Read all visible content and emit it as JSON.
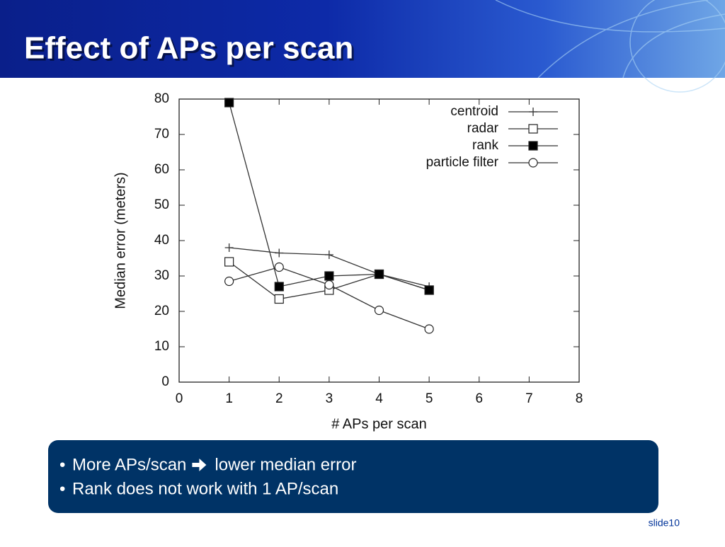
{
  "slide": {
    "title": "Effect of APs per scan",
    "bullets": [
      {
        "before": "More APs/scan",
        "after": "lower median error"
      },
      "Rank does not work with 1 AP/scan"
    ],
    "footer": "slide10"
  },
  "chart_data": {
    "type": "line",
    "xlabel": "# APs per scan",
    "ylabel": "Median error (meters)",
    "x": [
      1,
      2,
      3,
      4,
      5
    ],
    "series": [
      {
        "name": "centroid",
        "color": "#333333",
        "marker": "plus",
        "values": [
          38,
          36.5,
          36,
          30.5,
          27
        ]
      },
      {
        "name": "radar",
        "color": "#333333",
        "marker": "square",
        "values": [
          34,
          23.5,
          26,
          30.5,
          26
        ]
      },
      {
        "name": "rank",
        "color": "#333333",
        "marker": "filled-square",
        "values": [
          79,
          27,
          30,
          30.5,
          26
        ]
      },
      {
        "name": "particle filter",
        "color": "#333333",
        "marker": "circle",
        "values": [
          28.5,
          32.5,
          27.5,
          20.3,
          15
        ]
      }
    ],
    "xlim": [
      0,
      8
    ],
    "xticks": [
      0,
      1,
      2,
      3,
      4,
      5,
      6,
      7,
      8
    ],
    "ylim": [
      0,
      80
    ],
    "yticks": [
      0,
      10,
      20,
      30,
      40,
      50,
      60,
      70,
      80
    ],
    "legend": "top-right"
  }
}
